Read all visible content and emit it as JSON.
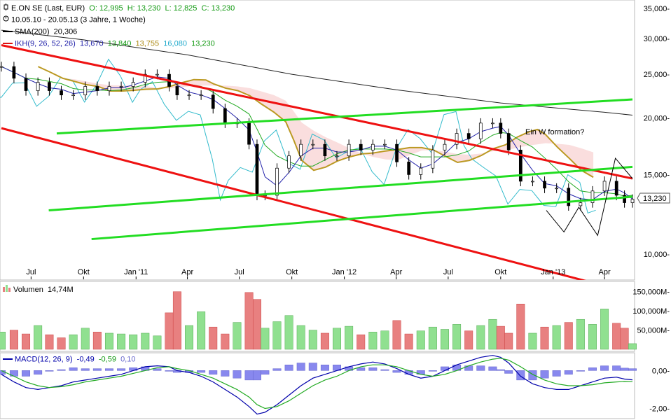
{
  "header": {
    "instrument": "E.ON SE (Last, EUR)",
    "open": "O: 12,995",
    "high": "H: 13,230",
    "low": "L: 12,825",
    "close": "C: 13,230",
    "period": "10.05.10 - 20.05.13 (3 Jahre, 1 Woche)",
    "sma_label": "SMA(200)",
    "sma_value": "20,306",
    "ikh_label": "IKH(9, 26, 52, 26)",
    "ikh_v1": "13,670",
    "ikh_v2": "13,840",
    "ikh_v3": "13,755",
    "ikh_v4": "16,080",
    "ikh_v5": "13,230"
  },
  "volume_header": {
    "label": "Volumen",
    "value": "14,74M"
  },
  "macd_header": {
    "label": "MACD(12, 26, 9)",
    "v1": "-0,49",
    "v2": "-0,59",
    "v3": "0,10"
  },
  "annotation": "Ein W formation?",
  "last_price_tag": "13,230",
  "colors": {
    "up": "#90e090",
    "down": "#e88080",
    "channel_red": "#ee1111",
    "channel_green": "#22dd22",
    "sma": "#222222",
    "tenkan": "#2222aa",
    "kijun": "#22aa22",
    "chikou": "#33bbcc",
    "senkou": "#bb9922",
    "kumo_bull": "#c8f0c8",
    "kumo_bear": "#f8d0d0",
    "macd_line": "#0000aa",
    "signal_line": "#22aa22",
    "hist": "#8888ee"
  },
  "chart_data": [
    {
      "type": "line",
      "panel": "price",
      "scale": "log",
      "ylim": [
        8.8,
        36.5
      ],
      "yticks": [
        10,
        15,
        20,
        25,
        30,
        35
      ],
      "ytick_labels": [
        "10,000-",
        "15,000-",
        "20,000-",
        "25,000-",
        "30,000-",
        "35,000-"
      ],
      "xlim": [
        "2010-05-10",
        "2013-05-20"
      ],
      "xticks": [
        {
          "date": "2010-07-01",
          "label": "Jul"
        },
        {
          "date": "2010-10-01",
          "label": "Okt"
        },
        {
          "date": "2011-01-01",
          "label": "Jan '11"
        },
        {
          "date": "2011-04-01",
          "label": "Apr"
        },
        {
          "date": "2011-07-01",
          "label": "Jul"
        },
        {
          "date": "2011-10-01",
          "label": "Okt"
        },
        {
          "date": "2012-01-01",
          "label": "Jan '12"
        },
        {
          "date": "2012-04-01",
          "label": "Apr"
        },
        {
          "date": "2012-07-01",
          "label": "Jul"
        },
        {
          "date": "2012-10-01",
          "label": "Okt"
        },
        {
          "date": "2013-01-01",
          "label": "Jan '13"
        },
        {
          "date": "2013-04-01",
          "label": "Apr"
        }
      ],
      "series": [
        {
          "name": "E.ON SE (Last, EUR)",
          "style": "candlestick",
          "x": [
            "2010-05-10",
            "2010-06-01",
            "2010-06-22",
            "2010-07-13",
            "2010-08-02",
            "2010-08-23",
            "2010-09-13",
            "2010-10-04",
            "2010-10-25",
            "2010-11-15",
            "2010-12-06",
            "2010-12-27",
            "2011-01-17",
            "2011-02-07",
            "2011-02-28",
            "2011-03-14",
            "2011-04-04",
            "2011-04-25",
            "2011-05-16",
            "2011-06-06",
            "2011-06-27",
            "2011-07-18",
            "2011-08-01",
            "2011-08-15",
            "2011-09-05",
            "2011-09-26",
            "2011-10-17",
            "2011-11-07",
            "2011-11-28",
            "2011-12-19",
            "2012-01-09",
            "2012-01-30",
            "2012-02-20",
            "2012-03-12",
            "2012-04-02",
            "2012-04-23",
            "2012-05-14",
            "2012-06-04",
            "2012-06-25",
            "2012-07-16",
            "2012-08-06",
            "2012-08-27",
            "2012-09-17",
            "2012-10-01",
            "2012-10-15",
            "2012-11-05",
            "2012-11-26",
            "2012-12-17",
            "2013-01-07",
            "2013-01-28",
            "2013-02-18",
            "2013-03-11",
            "2013-04-01",
            "2013-04-22",
            "2013-05-06",
            "2013-05-20"
          ],
          "y": [
            26.0,
            24.5,
            23.0,
            24.0,
            23.0,
            22.5,
            22.5,
            23.5,
            23.0,
            23.5,
            23.5,
            24.0,
            25.0,
            25.0,
            23.5,
            22.5,
            22.5,
            22.5,
            21.0,
            19.5,
            19.5,
            17.5,
            13.5,
            13.5,
            15.5,
            16.5,
            17.5,
            17.5,
            16.5,
            16.5,
            17.5,
            17.0,
            17.5,
            17.5,
            16.0,
            15.0,
            15.5,
            17.0,
            17.5,
            18.5,
            18.0,
            19.5,
            19.5,
            18.5,
            17.0,
            14.5,
            14.5,
            14.0,
            14.0,
            12.8,
            13.0,
            13.8,
            14.5,
            13.5,
            13.0,
            13.23
          ]
        },
        {
          "name": "SMA(200)",
          "x": [
            "2010-05-10",
            "2010-10-01",
            "2011-04-01",
            "2011-10-01",
            "2012-04-01",
            "2012-10-01",
            "2013-04-01",
            "2013-05-20"
          ],
          "y": [
            31.3,
            29.8,
            27.6,
            25.0,
            23.1,
            21.6,
            20.6,
            20.306
          ]
        }
      ],
      "channels": [
        {
          "color": "red",
          "from": {
            "date": "2010-05-10",
            "value": 29.0
          },
          "to": {
            "date": "2013-05-20",
            "value": 14.7
          }
        },
        {
          "color": "red",
          "from": {
            "date": "2010-05-10",
            "value": 19.0
          },
          "to": {
            "date": "2013-05-20",
            "value": 8.2
          }
        },
        {
          "color": "green",
          "from": {
            "date": "2010-08-15",
            "value": 18.5
          },
          "to": {
            "date": "2013-05-20",
            "value": 22.0
          }
        },
        {
          "color": "green",
          "from": {
            "date": "2010-08-01",
            "value": 12.5
          },
          "to": {
            "date": "2013-05-20",
            "value": 15.6
          }
        },
        {
          "color": "green",
          "from": {
            "date": "2010-10-15",
            "value": 10.8
          },
          "to": {
            "date": "2013-05-20",
            "value": 13.4
          }
        }
      ],
      "w_pattern": [
        {
          "date": "2012-12-20",
          "value": 12.5
        },
        {
          "date": "2013-01-20",
          "value": 11.2
        },
        {
          "date": "2013-02-15",
          "value": 12.7
        },
        {
          "date": "2013-03-20",
          "value": 11.0
        },
        {
          "date": "2013-04-20",
          "value": 16.3
        },
        {
          "date": "2013-05-20",
          "value": 14.7
        }
      ]
    },
    {
      "type": "bar",
      "panel": "volume",
      "ylim": [
        0,
        175
      ],
      "yticks": [
        50,
        100,
        150
      ],
      "ytick_labels": [
        "50,000M-",
        "100,000M-",
        "150,000M-"
      ],
      "series": [
        {
          "name": "Volumen",
          "values": [
            45,
            50,
            40,
            62,
            38,
            30,
            38,
            55,
            45,
            42,
            40,
            38,
            42,
            35,
            95,
            150,
            62,
            98,
            58,
            40,
            70,
            148,
            130,
            55,
            72,
            88,
            62,
            50,
            42,
            55,
            60,
            38,
            45,
            48,
            75,
            40,
            48,
            58,
            52,
            65,
            48,
            62,
            78,
            60,
            42,
            118,
            42,
            58,
            62,
            70,
            78,
            65,
            105,
            68,
            55,
            14.74
          ]
        }
      ]
    },
    {
      "type": "line",
      "panel": "macd",
      "ylim": [
        -2.5,
        0.9
      ],
      "yticks": [
        0,
        -2
      ],
      "ytick_labels": [
        "0,00-",
        "-2,00-"
      ],
      "series": [
        {
          "name": "MACD",
          "values": [
            -0.2,
            -0.6,
            -0.9,
            -1.0,
            -0.9,
            -0.8,
            -0.6,
            -0.5,
            -0.4,
            -0.3,
            -0.2,
            0.0,
            0.2,
            0.25,
            0.2,
            0.0,
            -0.1,
            -0.3,
            -0.6,
            -1.0,
            -1.4,
            -1.9,
            -2.3,
            -2.2,
            -1.8,
            -1.3,
            -0.8,
            -0.4,
            -0.2,
            0.0,
            0.2,
            0.35,
            0.45,
            0.35,
            0.1,
            -0.2,
            -0.4,
            -0.3,
            0.0,
            0.3,
            0.5,
            0.7,
            0.8,
            0.7,
            0.4,
            -0.3,
            -0.7,
            -0.9,
            -1.0,
            -1.0,
            -0.8,
            -0.6,
            -0.4,
            -0.35,
            -0.45,
            -0.49
          ]
        },
        {
          "name": "Signal",
          "values": [
            0.0,
            -0.3,
            -0.6,
            -0.8,
            -0.9,
            -0.85,
            -0.75,
            -0.6,
            -0.5,
            -0.4,
            -0.3,
            -0.15,
            0.0,
            0.15,
            0.2,
            0.1,
            0.0,
            -0.2,
            -0.4,
            -0.7,
            -1.0,
            -1.4,
            -1.8,
            -2.0,
            -1.9,
            -1.6,
            -1.2,
            -0.8,
            -0.5,
            -0.3,
            0.0,
            0.2,
            0.3,
            0.3,
            0.2,
            0.0,
            -0.2,
            -0.3,
            -0.2,
            0.0,
            0.25,
            0.45,
            0.6,
            0.65,
            0.55,
            0.2,
            -0.2,
            -0.5,
            -0.7,
            -0.8,
            -0.8,
            -0.75,
            -0.65,
            -0.6,
            -0.58,
            -0.59
          ]
        }
      ]
    }
  ]
}
